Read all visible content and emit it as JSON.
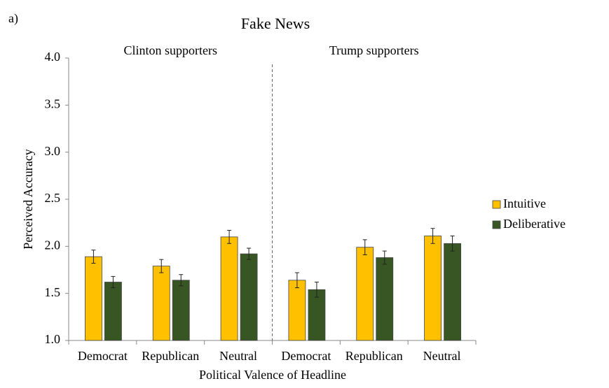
{
  "chart_data": {
    "type": "bar",
    "panel_label": "a)",
    "title": "Fake News",
    "panels": [
      "Clinton supporters",
      "Trump supporters"
    ],
    "x_label": "Political Valence of Headline",
    "y_label": "Perceived Accuracy",
    "categories": [
      "Democrat",
      "Republican",
      "Neutral",
      "Democrat",
      "Republican",
      "Neutral"
    ],
    "series": [
      {
        "name": "Intuitive",
        "color": "#FFC000",
        "values": [
          1.89,
          1.79,
          2.1,
          1.64,
          1.99,
          2.11
        ],
        "errors": [
          0.07,
          0.07,
          0.07,
          0.08,
          0.08,
          0.08
        ]
      },
      {
        "name": "Deliberative",
        "color": "#375623",
        "values": [
          1.62,
          1.64,
          1.92,
          1.54,
          1.88,
          2.03
        ],
        "errors": [
          0.06,
          0.06,
          0.06,
          0.08,
          0.07,
          0.08
        ]
      }
    ],
    "ylim": [
      1.0,
      4.0
    ],
    "yticks": [
      {
        "value": 1.0,
        "label": "1.0"
      },
      {
        "value": 1.5,
        "label": "1.5"
      },
      {
        "value": 2.0,
        "label": "2.0"
      },
      {
        "value": 2.5,
        "label": "2.5"
      },
      {
        "value": 3.0,
        "label": "3.0"
      },
      {
        "value": 3.5,
        "label": "3.5"
      },
      {
        "value": 4.0,
        "label": "4.0"
      }
    ],
    "legend": "right"
  }
}
